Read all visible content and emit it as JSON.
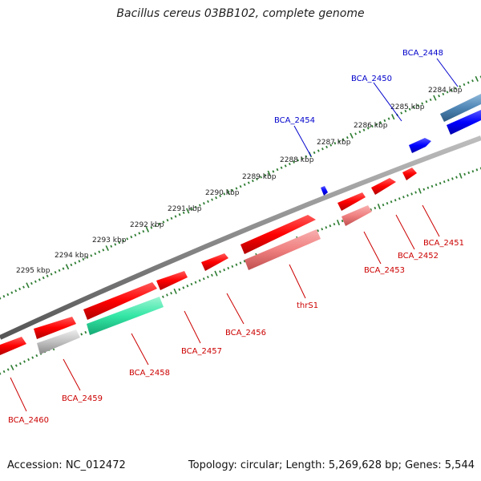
{
  "title": "Bacillus cereus 03BB102, complete genome",
  "footer": {
    "accession": "Accession: NC_012472",
    "stats": "Topology: circular; Length: 5,269,628 bp; Genes: 5,544"
  },
  "colors": {
    "backbone": "#8a8a8a",
    "ticks": "#2e7d32",
    "forward_gene": "#ff0000",
    "pale_gene": "#f08080",
    "grey_gene": "#c0c0c0",
    "teal_gene": "#33e6a6",
    "blue_gene": "#0000ff",
    "steel_gene": "#4f86b5",
    "blue_label": "#0000cc",
    "red_label": "#cc0000"
  },
  "scale_labels": [
    "2284 kbp",
    "2285 kbp",
    "2286 kbp",
    "2287 kbp",
    "2288 kbp",
    "2289 kbp",
    "2290 kbp",
    "2291 kbp",
    "2292 kbp",
    "2293 kbp",
    "2294 kbp",
    "2295 kbp"
  ],
  "gene_labels_top": [
    "BCA_2448",
    "BCA_2450",
    "BCA_2454"
  ],
  "gene_labels_bottom": [
    "BCA_2451",
    "BCA_2452",
    "BCA_2453",
    "thrS1",
    "BCA_2456",
    "BCA_2457",
    "BCA_2458",
    "BCA_2459",
    "BCA_2460"
  ]
}
